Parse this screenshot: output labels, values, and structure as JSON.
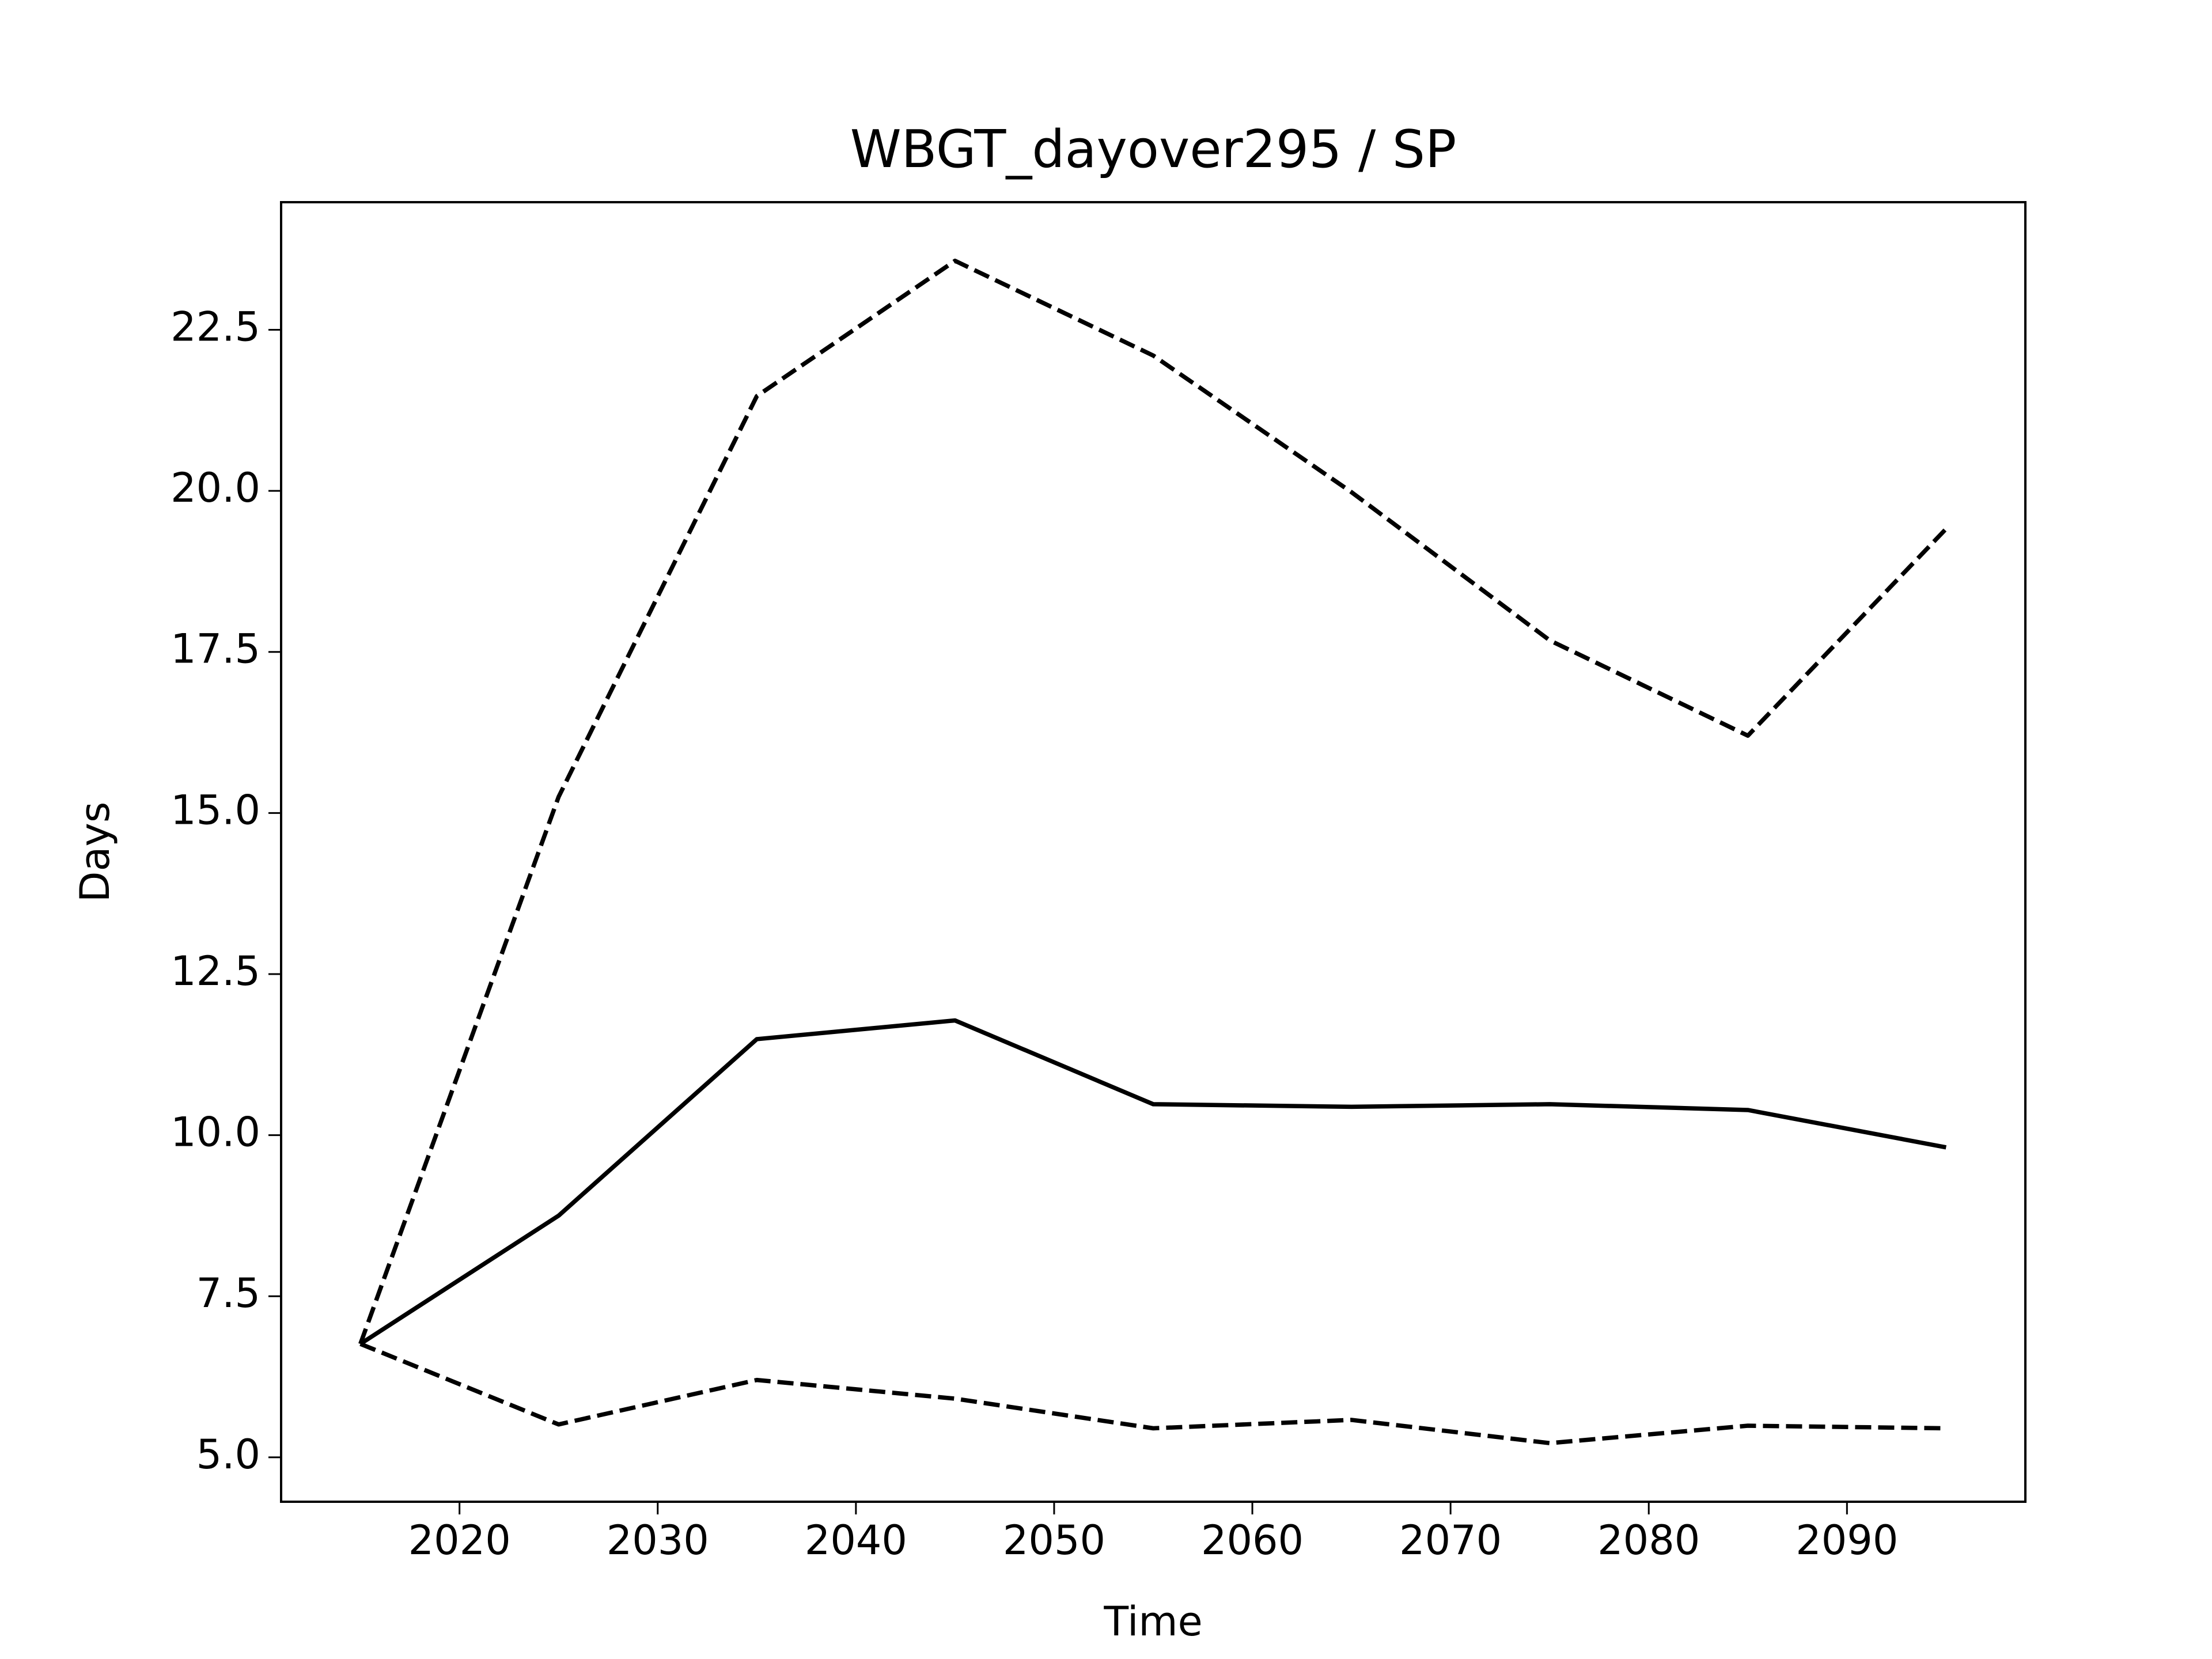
{
  "chart_data": {
    "type": "line",
    "title": "WBGT_dayover295 / SP",
    "xlabel": "Time",
    "ylabel": "Days",
    "x": [
      2015,
      2025,
      2035,
      2045,
      2055,
      2065,
      2075,
      2085,
      2095
    ],
    "series": [
      {
        "color": "#000000",
        "linestyle": "solid",
        "values": [
          6.76,
          8.75,
          11.49,
          11.78,
          10.48,
          10.44,
          10.48,
          10.39,
          9.81
        ]
      },
      {
        "color": "#000000",
        "linestyle": "dashed",
        "values": [
          6.76,
          15.25,
          21.47,
          23.57,
          22.1,
          19.98,
          17.68,
          16.2,
          19.41
        ]
      },
      {
        "color": "#000000",
        "linestyle": "dashed",
        "values": [
          6.76,
          5.51,
          6.2,
          5.91,
          5.45,
          5.58,
          5.22,
          5.49,
          5.45
        ]
      }
    ],
    "xlim": [
      2011,
      2099
    ],
    "ylim": [
      4.31,
      24.48
    ],
    "xticks": [
      2020,
      2030,
      2040,
      2050,
      2060,
      2070,
      2080,
      2090
    ],
    "yticks": [
      {
        "value": 5,
        "label": "5.0"
      },
      7.5,
      {
        "value": 10,
        "label": "10.0"
      },
      12.5,
      {
        "value": 15,
        "label": "15.0"
      },
      17.5,
      {
        "value": 20,
        "label": "20.0"
      },
      22.5
    ],
    "grid": false
  }
}
